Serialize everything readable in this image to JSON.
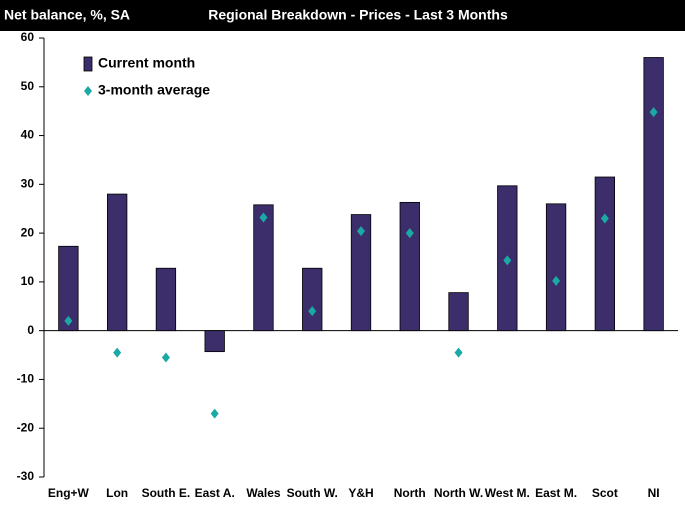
{
  "chart_data": {
    "type": "bar",
    "subtitle": "Net balance, %, SA",
    "title": "Regional Breakdown - Prices - Last 3 Months",
    "categories": [
      "Eng+W",
      "Lon",
      "South E.",
      "East A.",
      "Wales",
      "South W.",
      "Y&H",
      "North",
      "North W.",
      "West M.",
      "East M.",
      "Scot",
      "NI"
    ],
    "series": [
      {
        "name": "Current month",
        "color": "#3c2d6b",
        "values": [
          17.3,
          28,
          12.8,
          -4.3,
          25.8,
          12.8,
          23.8,
          26.3,
          7.8,
          29.7,
          26,
          31.5,
          56
        ]
      },
      {
        "name": "3-month average",
        "color": "#1aa9a5",
        "marker": "diamond",
        "values": [
          2,
          -4.5,
          -5.5,
          -17,
          23.2,
          4,
          20.4,
          20,
          -4.5,
          14.4,
          10.2,
          23,
          44.8
        ]
      }
    ],
    "ylim": [
      -30,
      60
    ],
    "yticks": [
      -30,
      -20,
      -10,
      0,
      10,
      20,
      30,
      40,
      50,
      60
    ],
    "grid": false,
    "legend": "top-left"
  }
}
